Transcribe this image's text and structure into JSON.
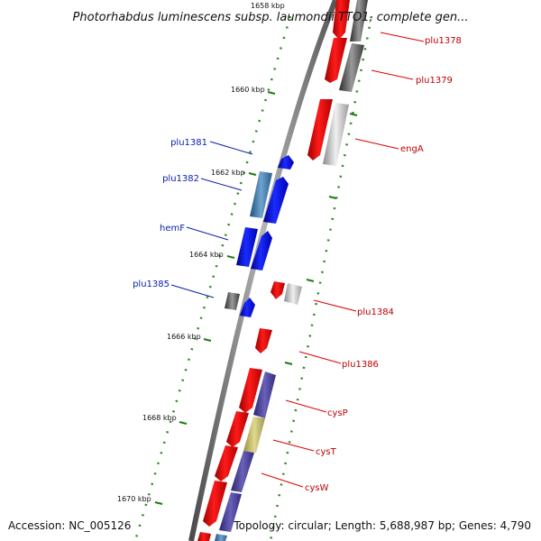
{
  "title": "Photorhabdus luminescens subsp. laumondii TTO1, complete gen...",
  "footer": {
    "accession": "Accession: NC_005126",
    "topology": "Topology: circular; Length: 5,688,987 bp; Genes: 4,790"
  },
  "ticks": {
    "t1658": "1658 kbp",
    "t1660": "1660 kbp",
    "t1662": "1662 kbp",
    "t1664": "1664 kbp",
    "t1666": "1666 kbp",
    "t1668": "1668 kbp",
    "t1670": "1670 kbp"
  },
  "genes_right": {
    "plu1378": "plu1378",
    "plu1379": "plu1379",
    "engA": "engA",
    "plu1384": "plu1384",
    "plu1386": "plu1386",
    "cysP": "cysP",
    "cysT": "cysT",
    "cysW": "cysW"
  },
  "genes_left": {
    "plu1381": "plu1381",
    "plu1382": "plu1382",
    "hemF": "hemF",
    "plu1385": "plu1385"
  },
  "colors": {
    "forward_gene": "#ff0000",
    "reverse_gene": "#0000ff",
    "backbone": "#7a7a7a",
    "ticks": "#2a8a1f",
    "label_forward": "#c00000",
    "label_reverse": "#0a1fa8"
  }
}
